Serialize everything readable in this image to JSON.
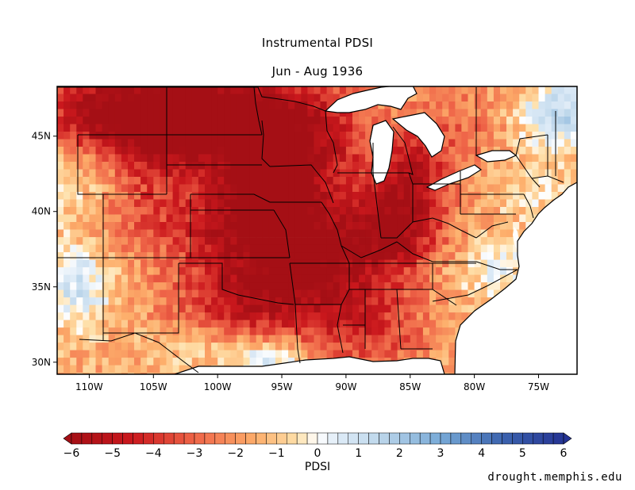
{
  "title": "Instrumental PDSI",
  "subtitle": "Jun - Aug 1936",
  "map": {
    "lon_labels": [
      "110W",
      "105W",
      "100W",
      "95W",
      "90W",
      "85W",
      "80W",
      "75W"
    ],
    "lon_values": [
      -110,
      -105,
      -100,
      -95,
      -90,
      -85,
      -80,
      -75
    ],
    "lat_labels": [
      "45N",
      "40N",
      "35N",
      "30N"
    ],
    "lat_values": [
      45,
      40,
      35,
      30
    ],
    "extent": {
      "lon": [
        -112.5,
        -72
      ],
      "lat": [
        29.2,
        48.3
      ]
    }
  },
  "colorbar": {
    "label": "PDSI",
    "range": [
      -6,
      6
    ],
    "tick_labels": [
      "−6",
      "−5",
      "−4",
      "−3",
      "−2",
      "−1",
      "0",
      "1",
      "2",
      "3",
      "4",
      "5",
      "6"
    ],
    "low_color": "#a50f15",
    "mid_color": "#ffffff",
    "high_color": "#253494"
  },
  "credit": "drought.memphis.edu"
}
